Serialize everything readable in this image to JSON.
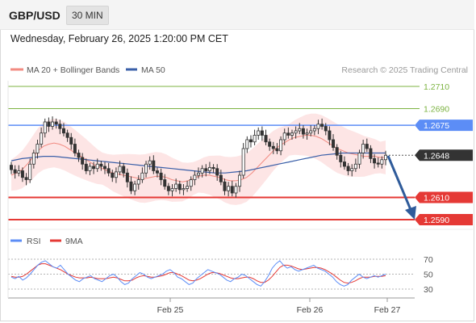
{
  "header": {
    "pair": "GBP/USD",
    "timeframe": "30 MIN"
  },
  "timestamp": "Wednesday, February 26, 2025 1:20:00 PM CET",
  "legend": {
    "ma20_bb": "MA 20 + Bollinger Bands",
    "ma50": "MA 50"
  },
  "credit": "Research © 2025 Trading Central",
  "rsi_legend": {
    "rsi": "RSI",
    "ma9": "9MA"
  },
  "colors": {
    "resistance": "#7cb342",
    "pivot": "#5c8df6",
    "support": "#e53935",
    "price_tag": "#333333",
    "arrow": "#2f5b9a",
    "bollinger_fill": "#fde0e0",
    "ma20": "#f28b82",
    "ma50": "#3a5fa8",
    "candle": "#333333"
  },
  "chart_data": [
    {
      "type": "candlestick",
      "title": "GBP/USD 30 MIN",
      "x_ticks": [
        "Feb 25",
        "Feb 26",
        "Feb 27"
      ],
      "levels": [
        {
          "label": "1.2710",
          "value": 1.271,
          "kind": "resistance"
        },
        {
          "label": "1.2690",
          "value": 1.269,
          "kind": "resistance"
        },
        {
          "label": "1.2675",
          "value": 1.2675,
          "kind": "pivot"
        },
        {
          "label": "1.2648",
          "value": 1.2648,
          "kind": "last"
        },
        {
          "label": "1.2610",
          "value": 1.261,
          "kind": "support"
        },
        {
          "label": "1.2590",
          "value": 1.259,
          "kind": "support"
        }
      ],
      "series": [
        {
          "name": "Close",
          "values": [
            1.2635,
            1.2632,
            1.2634,
            1.2628,
            1.2626,
            1.264,
            1.265,
            1.2658,
            1.2668,
            1.2678,
            1.2674,
            1.2678,
            1.2676,
            1.2672,
            1.2668,
            1.2664,
            1.2658,
            1.265,
            1.2646,
            1.264,
            1.2634,
            1.2638,
            1.2636,
            1.264,
            1.2638,
            1.2636,
            1.2632,
            1.2628,
            1.2633,
            1.2638,
            1.2632,
            1.2624,
            1.2616,
            1.2622,
            1.2626,
            1.2632,
            1.264,
            1.2643,
            1.2634,
            1.2632,
            1.2626,
            1.262,
            1.2616,
            1.2618,
            1.2622,
            1.2617,
            1.2618,
            1.262,
            1.2626,
            1.263,
            1.2632,
            1.2636,
            1.2634,
            1.2637,
            1.2636,
            1.263,
            1.2624,
            1.2616,
            1.262,
            1.2614,
            1.262,
            1.263,
            1.2654,
            1.2662,
            1.266,
            1.2666,
            1.267,
            1.2666,
            1.266,
            1.2656,
            1.2654,
            1.2652,
            1.2662,
            1.2668,
            1.2666,
            1.2668,
            1.267,
            1.2672,
            1.2667,
            1.2668,
            1.267,
            1.2672,
            1.2676,
            1.2674,
            1.267,
            1.2662,
            1.2655,
            1.2648,
            1.2642,
            1.2638,
            1.2634,
            1.2636,
            1.264,
            1.265,
            1.2658,
            1.2654,
            1.2645,
            1.2641,
            1.264,
            1.2644,
            1.2648
          ]
        },
        {
          "name": "MA 20",
          "values": [
            1.263,
            1.2632,
            1.2635,
            1.264,
            1.2646,
            1.2652,
            1.2656,
            1.2658,
            1.2659,
            1.2658,
            1.2656,
            1.2653,
            1.265,
            1.2647,
            1.2644,
            1.2641,
            1.2638,
            1.2636,
            1.2634,
            1.2632,
            1.2631,
            1.263,
            1.2629,
            1.2628,
            1.2627,
            1.2627,
            1.2628,
            1.2629,
            1.2629,
            1.2628,
            1.2626,
            1.2625,
            1.2624,
            1.2625,
            1.2627,
            1.2629,
            1.263,
            1.263,
            1.2629,
            1.2628,
            1.2626,
            1.2625,
            1.2625,
            1.2626,
            1.2628,
            1.2632,
            1.2637,
            1.2642,
            1.2647,
            1.2652,
            1.2656,
            1.2659,
            1.2662,
            1.2664,
            1.2665,
            1.2666,
            1.2666,
            1.2665,
            1.2663,
            1.266,
            1.2657,
            1.2654,
            1.2652,
            1.265,
            1.2649,
            1.2648,
            1.2647,
            1.2647,
            1.2647,
            1.2646,
            1.2646
          ]
        },
        {
          "name": "MA 50",
          "values": [
            1.2643,
            1.2645,
            1.2646,
            1.2647,
            1.2647,
            1.2646,
            1.2645,
            1.2644,
            1.2643,
            1.2642,
            1.2641,
            1.264,
            1.2639,
            1.2638,
            1.2637,
            1.2636,
            1.2635,
            1.2634,
            1.2633,
            1.2632,
            1.2632,
            1.2633,
            1.2634,
            1.2636,
            1.2638,
            1.264,
            1.2642,
            1.2644,
            1.2646,
            1.2648,
            1.2649,
            1.265,
            1.265,
            1.265,
            1.265,
            1.265
          ]
        },
        {
          "name": "RSI",
          "values": [
            46,
            44,
            47,
            42,
            45,
            50,
            56,
            62,
            66,
            68,
            64,
            60,
            58,
            62,
            56,
            50,
            46,
            42,
            40,
            44,
            46,
            48,
            44,
            42,
            40,
            44,
            48,
            50,
            46,
            40,
            36,
            38,
            44,
            48,
            52,
            50,
            46,
            44,
            46,
            48,
            50,
            54,
            56,
            52,
            46,
            44,
            40,
            36,
            38,
            44,
            48,
            52,
            56,
            54,
            52,
            50,
            46,
            42,
            40,
            44,
            46,
            50,
            48,
            44,
            40,
            36,
            34,
            40,
            48,
            58,
            64,
            68,
            62,
            58,
            60,
            56,
            54,
            56,
            58,
            60,
            62,
            58,
            56,
            54,
            50,
            46,
            40,
            36,
            34,
            36,
            42,
            46,
            50,
            46,
            44,
            46,
            48,
            46,
            48,
            50
          ]
        },
        {
          "name": "9MA",
          "values": [
            47,
            46,
            46,
            47,
            50,
            54,
            58,
            62,
            64,
            64,
            62,
            60,
            58,
            56,
            53,
            50,
            48,
            46,
            45,
            45,
            45,
            46,
            45,
            44,
            44,
            44,
            45,
            46,
            45,
            43,
            41,
            41,
            42,
            45,
            47,
            48,
            47,
            46,
            46,
            47,
            48,
            50,
            52,
            52,
            50,
            48,
            45,
            42,
            41,
            42,
            44,
            47,
            50,
            52,
            52,
            51,
            49,
            47,
            45,
            44,
            44,
            45,
            46,
            46,
            44,
            41,
            39,
            39,
            42,
            47,
            53,
            59,
            62,
            62,
            61,
            59,
            57,
            56,
            57,
            58,
            59,
            59,
            58,
            56,
            53,
            50,
            46,
            42,
            39,
            38,
            39,
            41,
            44,
            46,
            46,
            46,
            47,
            47,
            47,
            48
          ]
        }
      ],
      "rsi_axis_ticks": [
        70,
        50,
        30
      ],
      "ylim": [
        1.2585,
        1.2715
      ],
      "grid": false,
      "legend_position": "top-left",
      "annotations": [
        "forecast arrow pointing down toward 1.2590"
      ]
    }
  ]
}
